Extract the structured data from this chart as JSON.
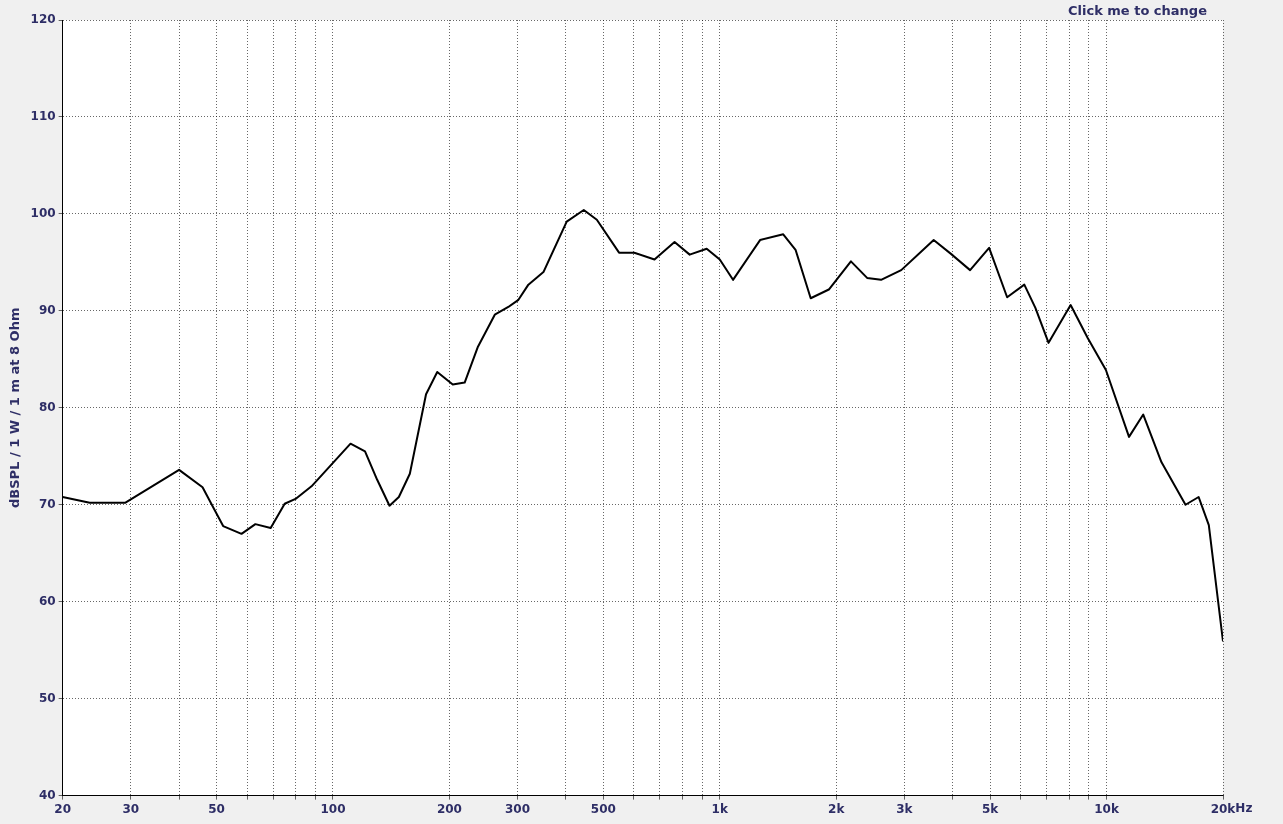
{
  "chart_data": {
    "type": "line",
    "xlabel": "Hz",
    "ylabel": "dBSPL / 1 W / 1 m at 8 Ohm",
    "annotations": [
      "Click me to change"
    ],
    "log": "x",
    "grid": true,
    "legend": false,
    "marker": "none",
    "line_style": "solid",
    "xlim": [
      20,
      20000
    ],
    "ylim": [
      40,
      120
    ],
    "xticks": [
      20,
      30,
      {
        "value": 40,
        "label": null
      },
      50,
      {
        "value": 60,
        "label": null
      },
      {
        "value": 70,
        "label": null
      },
      {
        "value": 80,
        "label": null
      },
      {
        "value": 90,
        "label": null
      },
      100,
      200,
      300,
      {
        "value": 400,
        "label": null
      },
      500,
      {
        "value": 600,
        "label": null
      },
      {
        "value": 700,
        "label": null
      },
      {
        "value": 800,
        "label": null
      },
      {
        "value": 900,
        "label": null
      },
      {
        "value": 1000,
        "label": "1k"
      },
      {
        "value": 2000,
        "label": "2k"
      },
      {
        "value": 3000,
        "label": "3k"
      },
      {
        "value": 4000,
        "label": null
      },
      {
        "value": 5000,
        "label": "5k"
      },
      {
        "value": 6000,
        "label": null
      },
      {
        "value": 7000,
        "label": null
      },
      {
        "value": 8000,
        "label": null
      },
      {
        "value": 9000,
        "label": null
      },
      {
        "value": 10000,
        "label": "10k"
      },
      {
        "value": 20000,
        "label": "20k"
      }
    ],
    "yticks": [
      40,
      50,
      60,
      70,
      80,
      90,
      100,
      110,
      120
    ],
    "series": [
      {
        "color": "#000000",
        "x": [
          20,
          23.5,
          29,
          40,
          46,
          52,
          58,
          63,
          69,
          75,
          80,
          88,
          111,
          121,
          130,
          140,
          148,
          158,
          174,
          186,
          204,
          219,
          237,
          262,
          284,
          301,
          320,
          350,
          402,
          445,
          481,
          549,
          601,
          678,
          764,
          836,
          925,
          1000,
          1082,
          1271,
          1459,
          1570,
          1718,
          1914,
          2183,
          2404,
          2612,
          2945,
          3573,
          3982,
          4438,
          4970,
          5533,
          6128,
          6546,
          7080,
          8074,
          8938,
          9961,
          11430,
          12440,
          13860,
          16000,
          17300,
          18380,
          20000
        ],
        "values": [
          70.8,
          70.2,
          70.2,
          73.6,
          71.8,
          67.8,
          67.0,
          68.0,
          67.6,
          70.1,
          70.6,
          71.9,
          76.3,
          75.5,
          72.6,
          69.9,
          70.8,
          73.2,
          81.4,
          83.7,
          82.4,
          82.6,
          86.3,
          89.6,
          90.4,
          91.1,
          92.7,
          94.0,
          99.2,
          100.4,
          99.4,
          96.0,
          96.0,
          95.3,
          97.1,
          95.8,
          96.4,
          95.3,
          93.2,
          97.3,
          97.9,
          96.3,
          91.3,
          92.2,
          95.1,
          93.4,
          93.2,
          94.2,
          97.3,
          95.8,
          94.2,
          96.5,
          91.4,
          92.7,
          90.3,
          86.7,
          90.6,
          87.2,
          83.9,
          77.0,
          79.3,
          74.4,
          70.0,
          70.8,
          67.9,
          55.9
        ]
      }
    ]
  }
}
